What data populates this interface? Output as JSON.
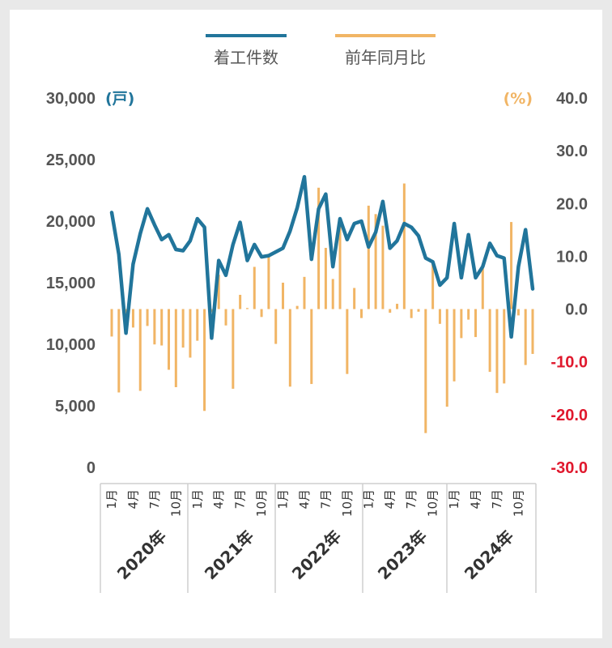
{
  "chart_data": {
    "type": "bar+line",
    "title": "",
    "colors": {
      "line": "#21759b",
      "bar": "#f1b565",
      "left_tick": "#555555",
      "right_positive": "#555555",
      "right_negative": "#e0182d",
      "unit_left": "#21759b",
      "unit_right": "#f1b565"
    },
    "legend": [
      {
        "name": "着工件数",
        "kind": "line"
      },
      {
        "name": "前年同月比",
        "kind": "bar"
      }
    ],
    "left_axis": {
      "unit": "(戸)",
      "ylim": [
        0,
        30000
      ],
      "ticks": [
        0,
        5000,
        10000,
        15000,
        20000,
        25000,
        30000
      ],
      "tick_labels": [
        "0",
        "5,000",
        "10,000",
        "15,000",
        "20,000",
        "25,000",
        "30,000"
      ]
    },
    "right_axis": {
      "unit": "(%)",
      "ylim": [
        -30,
        40
      ],
      "ticks": [
        -30,
        -20,
        -10,
        0,
        10,
        20,
        30,
        40
      ],
      "tick_labels": [
        "-30.0",
        "-20.0",
        "-10.0",
        "0.0",
        "10.0",
        "20.0",
        "30.0",
        "40.0"
      ]
    },
    "years": [
      {
        "label": "2020年",
        "months": [
          "1月",
          "4月",
          "7月",
          "10月"
        ]
      },
      {
        "label": "2021年",
        "months": [
          "1月",
          "4月",
          "7月",
          "10月"
        ]
      },
      {
        "label": "2022年",
        "months": [
          "1月",
          "4月",
          "7月",
          "10月"
        ]
      },
      {
        "label": "2023年",
        "months": [
          "1月",
          "4月",
          "7月",
          "10月"
        ]
      },
      {
        "label": "2024年",
        "months": [
          "1月",
          "4月",
          "7月",
          "10月"
        ]
      }
    ],
    "series": [
      {
        "name": "着工件数",
        "axis": "left",
        "values": [
          20700,
          17300,
          10900,
          16500,
          19000,
          21000,
          19700,
          18500,
          18900,
          17700,
          17600,
          18400,
          20200,
          19500,
          10500,
          16800,
          15600,
          18100,
          19900,
          16800,
          18100,
          17100,
          17200,
          17500,
          17800,
          19200,
          21100,
          23600,
          16900,
          21000,
          22200,
          16300,
          20200,
          18500,
          19800,
          20000,
          17900,
          19100,
          21600,
          17800,
          18400,
          19800,
          19500,
          18800,
          17000,
          16700,
          14800,
          15400,
          19800,
          15400,
          18900,
          15400,
          16300,
          18200,
          17200,
          17000,
          10600,
          16300,
          19300,
          14500
        ]
      },
      {
        "name": "前年同月比",
        "axis": "right",
        "values": [
          -5.2,
          -15.8,
          -4.0,
          -3.5,
          -15.5,
          -3.2,
          -6.7,
          -6.9,
          -11.5,
          -14.8,
          -7.3,
          -9.2,
          -6.0,
          -19.3,
          -0.6,
          6.5,
          -3.1,
          -15.1,
          2.7,
          0.2,
          8.0,
          -1.5,
          10.4,
          -6.6,
          5.0,
          -14.7,
          0.6,
          6.1,
          -14.2,
          23.0,
          11.6,
          5.7,
          16.8,
          -12.3,
          4.0,
          -1.7,
          19.6,
          18.0,
          15.8,
          -0.7,
          1.0,
          23.8,
          -1.7,
          -0.5,
          -23.5,
          8.5,
          -2.8,
          -18.5,
          -13.7,
          -5.5,
          -2.0,
          -5.3,
          8.3,
          -11.9,
          -15.9,
          -14.1,
          16.5,
          -1.2,
          -10.6,
          -8.5
        ]
      }
    ],
    "gridlines": false
  }
}
